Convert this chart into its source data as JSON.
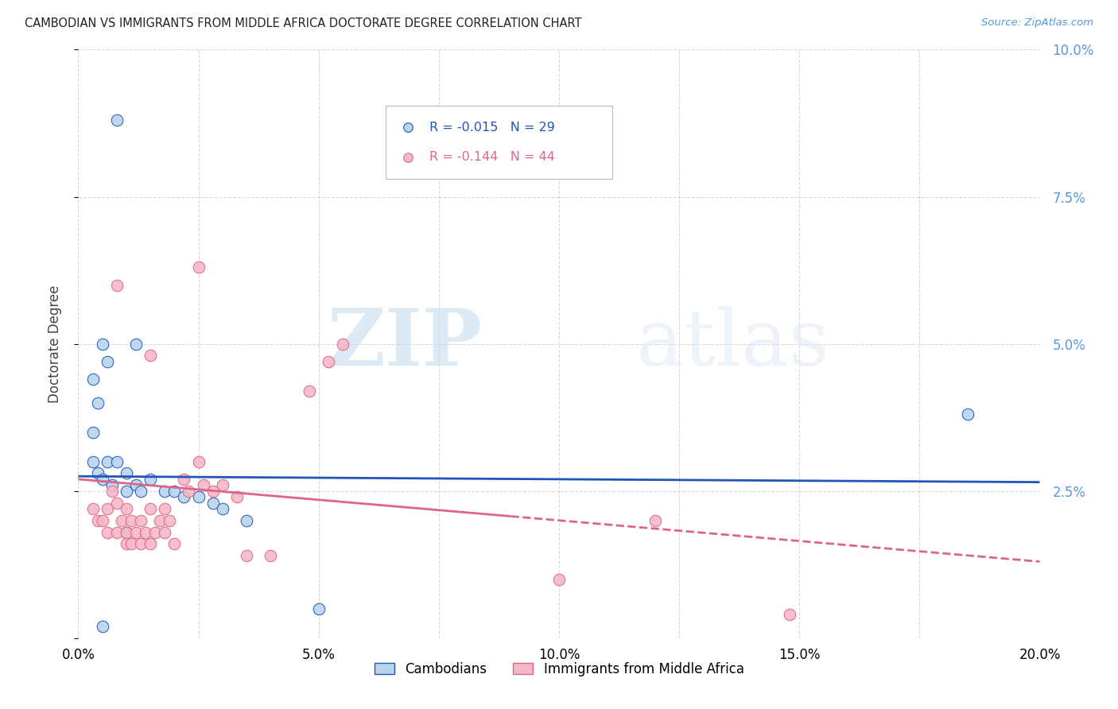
{
  "title": "CAMBODIAN VS IMMIGRANTS FROM MIDDLE AFRICA DOCTORATE DEGREE CORRELATION CHART",
  "source": "Source: ZipAtlas.com",
  "ylabel": "Doctorate Degree",
  "r_cambodian": -0.015,
  "n_cambodian": 29,
  "r_middle_africa": -0.144,
  "n_middle_africa": 44,
  "xlim": [
    0.0,
    0.2
  ],
  "ylim": [
    0.0,
    0.1
  ],
  "yticks": [
    0.0,
    0.025,
    0.05,
    0.075,
    0.1
  ],
  "grid_color": "#c8c8c8",
  "background_color": "#ffffff",
  "cambodian_color": "#b8d4ec",
  "middle_africa_color": "#f4b8c8",
  "trend_blue": "#2255bb",
  "trend_pink": "#dd6688",
  "watermark_zip": "ZIP",
  "watermark_atlas": "atlas",
  "cambodian_x": [
    0.008,
    0.012,
    0.005,
    0.006,
    0.003,
    0.004,
    0.003,
    0.003,
    0.004,
    0.005,
    0.006,
    0.007,
    0.008,
    0.01,
    0.01,
    0.012,
    0.013,
    0.015,
    0.018,
    0.02,
    0.022,
    0.025,
    0.028,
    0.03,
    0.035,
    0.05,
    0.185,
    0.01,
    0.005
  ],
  "cambodian_y": [
    0.088,
    0.05,
    0.05,
    0.047,
    0.044,
    0.04,
    0.035,
    0.03,
    0.028,
    0.027,
    0.03,
    0.026,
    0.03,
    0.028,
    0.025,
    0.026,
    0.025,
    0.027,
    0.025,
    0.025,
    0.024,
    0.024,
    0.023,
    0.022,
    0.02,
    0.005,
    0.038,
    0.018,
    0.002
  ],
  "middle_africa_x": [
    0.003,
    0.004,
    0.005,
    0.006,
    0.006,
    0.007,
    0.008,
    0.008,
    0.009,
    0.01,
    0.01,
    0.01,
    0.011,
    0.011,
    0.012,
    0.013,
    0.013,
    0.014,
    0.015,
    0.015,
    0.016,
    0.017,
    0.018,
    0.018,
    0.019,
    0.02,
    0.022,
    0.023,
    0.025,
    0.026,
    0.028,
    0.03,
    0.033,
    0.035,
    0.04,
    0.048,
    0.052,
    0.055,
    0.1,
    0.12,
    0.025,
    0.015,
    0.148,
    0.008
  ],
  "middle_africa_y": [
    0.022,
    0.02,
    0.02,
    0.022,
    0.018,
    0.025,
    0.023,
    0.018,
    0.02,
    0.022,
    0.018,
    0.016,
    0.02,
    0.016,
    0.018,
    0.02,
    0.016,
    0.018,
    0.022,
    0.016,
    0.018,
    0.02,
    0.022,
    0.018,
    0.02,
    0.016,
    0.027,
    0.025,
    0.03,
    0.026,
    0.025,
    0.026,
    0.024,
    0.014,
    0.014,
    0.042,
    0.047,
    0.05,
    0.01,
    0.02,
    0.063,
    0.048,
    0.004,
    0.06
  ]
}
